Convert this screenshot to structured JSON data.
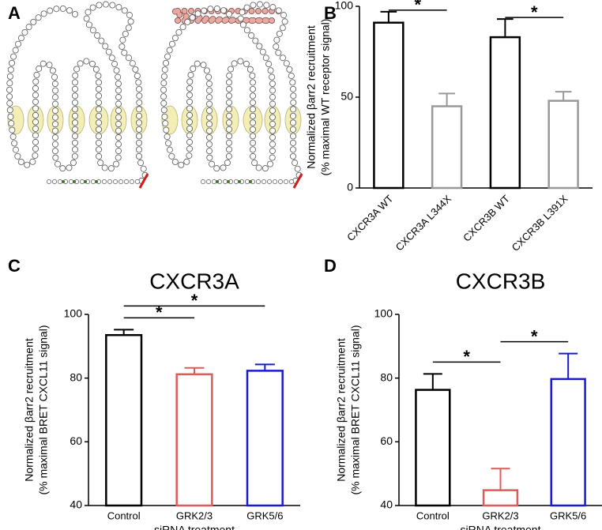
{
  "panel_labels": [
    "A",
    "B",
    "C",
    "D"
  ],
  "chart_data": [
    {
      "type": "bar",
      "categories": [
        "CXCR3A WT",
        "CXCR3A L344X",
        "CXCR3B WT",
        "CXCR3B L391X"
      ],
      "values": [
        91,
        45,
        83,
        48
      ],
      "errors": [
        6,
        7,
        10,
        5
      ],
      "colors": [
        "#000000",
        "#999999",
        "#000000",
        "#999999"
      ],
      "ylim": [
        0,
        100
      ],
      "yticks": [
        0,
        50,
        100
      ],
      "ylabel": [
        "Normalized βarr2 recruitment",
        "(% maximal WT receptor signal)"
      ],
      "annotations": [
        {
          "text": "*",
          "between": [
            "CXCR3A WT",
            "CXCR3A L344X"
          ]
        },
        {
          "text": "*",
          "between": [
            "CXCR3B WT",
            "CXCR3B L391X"
          ]
        }
      ]
    },
    {
      "type": "bar",
      "title": "CXCR3A",
      "categories": [
        "Control",
        "GRK2/3",
        "GRK5/6"
      ],
      "values": [
        93.5,
        81.2,
        82.3
      ],
      "errors": [
        1.7,
        2,
        2
      ],
      "colors": [
        "#000000",
        "#e05a5a",
        "#1a1acc"
      ],
      "ylim": [
        40,
        100
      ],
      "yticks": [
        40,
        60,
        80,
        100
      ],
      "ylabel": [
        "Normalized βarr2 recruitment",
        "(% maximal BRET CXCL11 signal)"
      ],
      "xlabel": "siRNA treatment",
      "annotations": [
        {
          "text": "*",
          "between": [
            "Control",
            "GRK2/3"
          ]
        },
        {
          "text": "*",
          "between": [
            "Control",
            "GRK5/6"
          ]
        }
      ]
    },
    {
      "type": "bar",
      "title": "CXCR3B",
      "categories": [
        "Control",
        "GRK2/3",
        "GRK5/6"
      ],
      "values": [
        76.3,
        44.8,
        79.7
      ],
      "errors": [
        5,
        6.8,
        8
      ],
      "colors": [
        "#000000",
        "#e05a5a",
        "#1a1acc"
      ],
      "ylim": [
        40,
        100
      ],
      "yticks": [
        40,
        60,
        80,
        100
      ],
      "ylabel": [
        "Normalized βarr2 recruitment",
        "(% maximal BRET CXCL11 signal)"
      ],
      "xlabel": "siRNA treatment",
      "annotations": [
        {
          "text": "*",
          "between": [
            "Control",
            "GRK2/3"
          ]
        },
        {
          "text": "*",
          "between": [
            "GRK2/3",
            "GRK5/6"
          ]
        }
      ]
    }
  ]
}
